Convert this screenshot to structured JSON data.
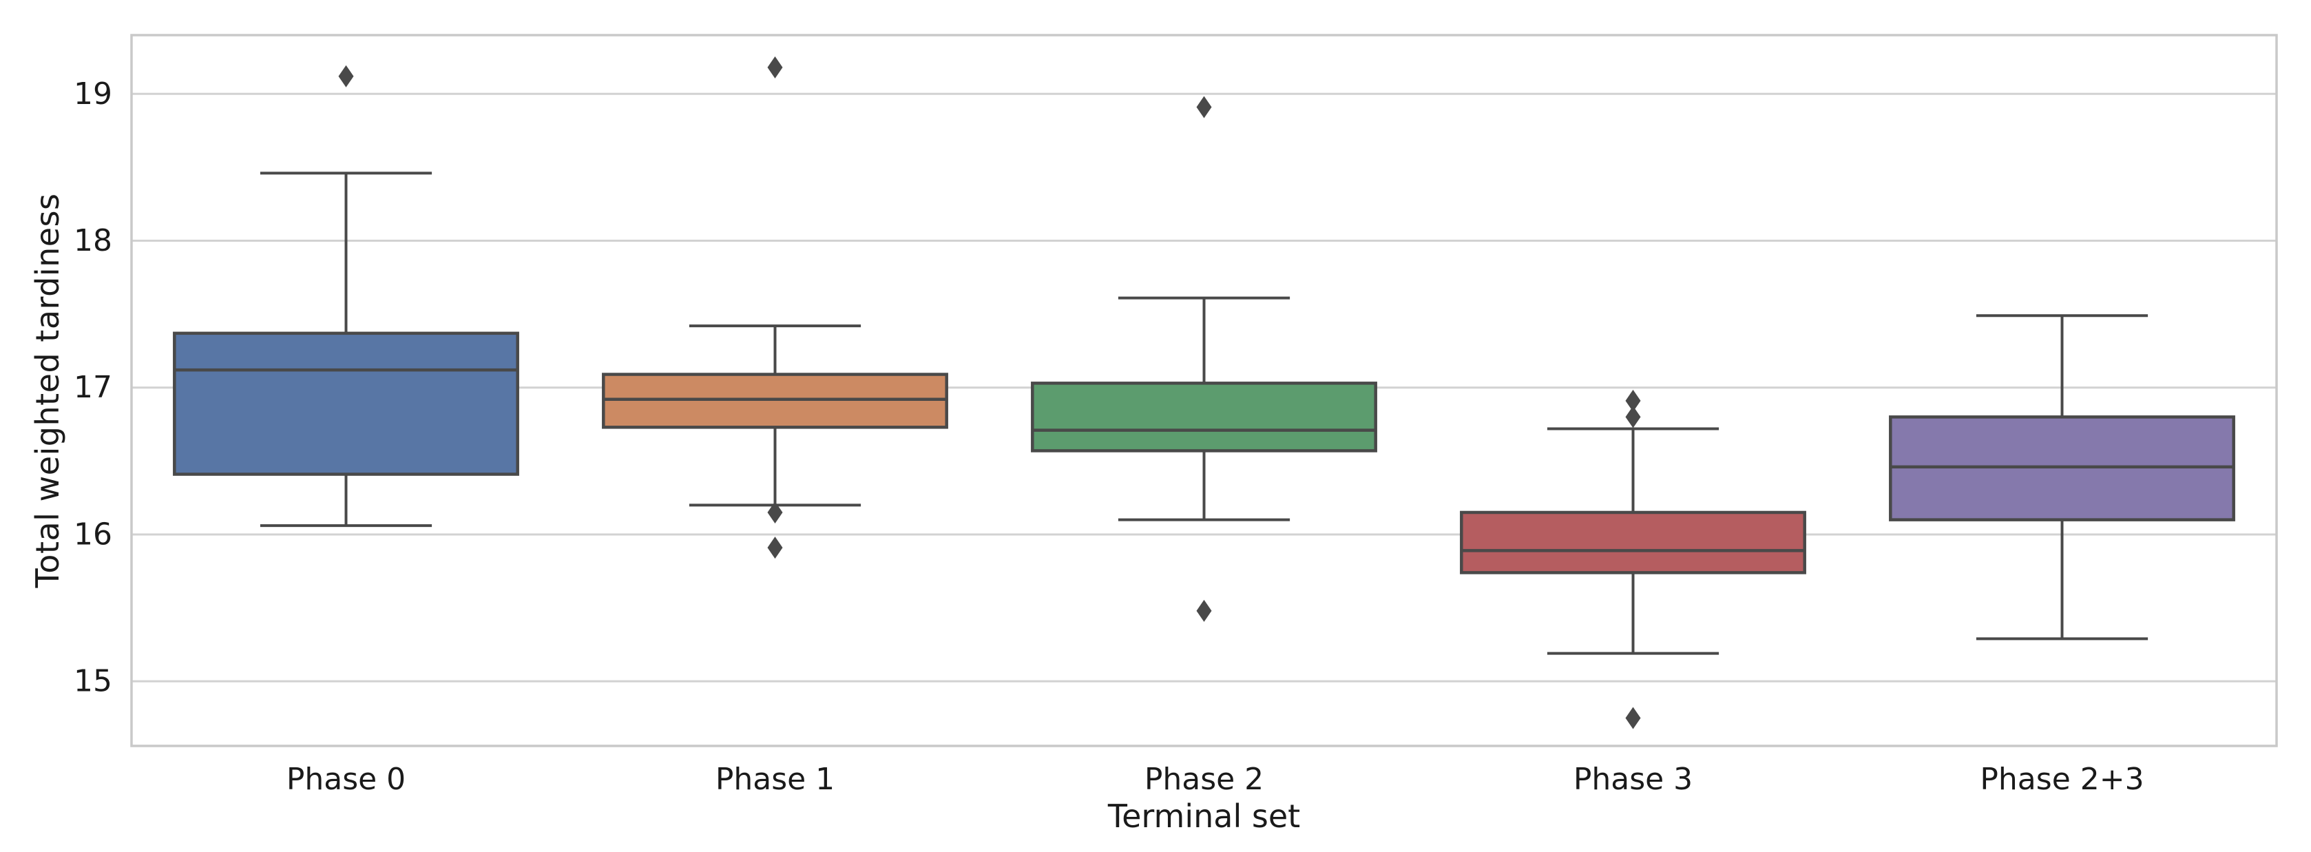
{
  "chart_data": {
    "type": "box",
    "title": "",
    "xlabel": "Terminal set",
    "ylabel": "Total weighted tardiness",
    "categories": [
      "Phase 0",
      "Phase 1",
      "Phase 2",
      "Phase 3",
      "Phase 2+3"
    ],
    "yticks": [
      15,
      16,
      17,
      18,
      19
    ],
    "ylim": [
      14.56,
      19.4
    ],
    "grid": "horizontal",
    "legend": "none",
    "series": [
      {
        "label": "Phase 0",
        "color": "#5876a5",
        "whisker_low": 16.06,
        "q1": 16.41,
        "median": 17.12,
        "q3": 17.37,
        "whisker_high": 18.46,
        "outliers": [
          19.12
        ]
      },
      {
        "label": "Phase 1",
        "color": "#cc8a63",
        "whisker_low": 16.2,
        "q1": 16.73,
        "median": 16.92,
        "q3": 17.09,
        "whisker_high": 17.42,
        "outliers": [
          19.18,
          16.15,
          15.91
        ]
      },
      {
        "label": "Phase 2",
        "color": "#5c9c6e",
        "whisker_low": 16.1,
        "q1": 16.57,
        "median": 16.71,
        "q3": 17.03,
        "whisker_high": 17.61,
        "outliers": [
          18.91,
          15.48
        ]
      },
      {
        "label": "Phase 3",
        "color": "#b55d60",
        "whisker_low": 15.19,
        "q1": 15.74,
        "median": 15.89,
        "q3": 16.15,
        "whisker_high": 16.72,
        "outliers": [
          16.91,
          16.8,
          14.75
        ]
      },
      {
        "label": "Phase 2+3",
        "color": "#8579ac",
        "whisker_low": 15.29,
        "q1": 16.1,
        "median": 16.46,
        "q3": 16.8,
        "whisker_high": 17.49,
        "outliers": []
      }
    ],
    "colors": {
      "line": "#494949",
      "grid": "#d2d2d2",
      "spine": "#c9c9c9",
      "text": "#1a1a1a",
      "background": "#ffffff"
    }
  }
}
